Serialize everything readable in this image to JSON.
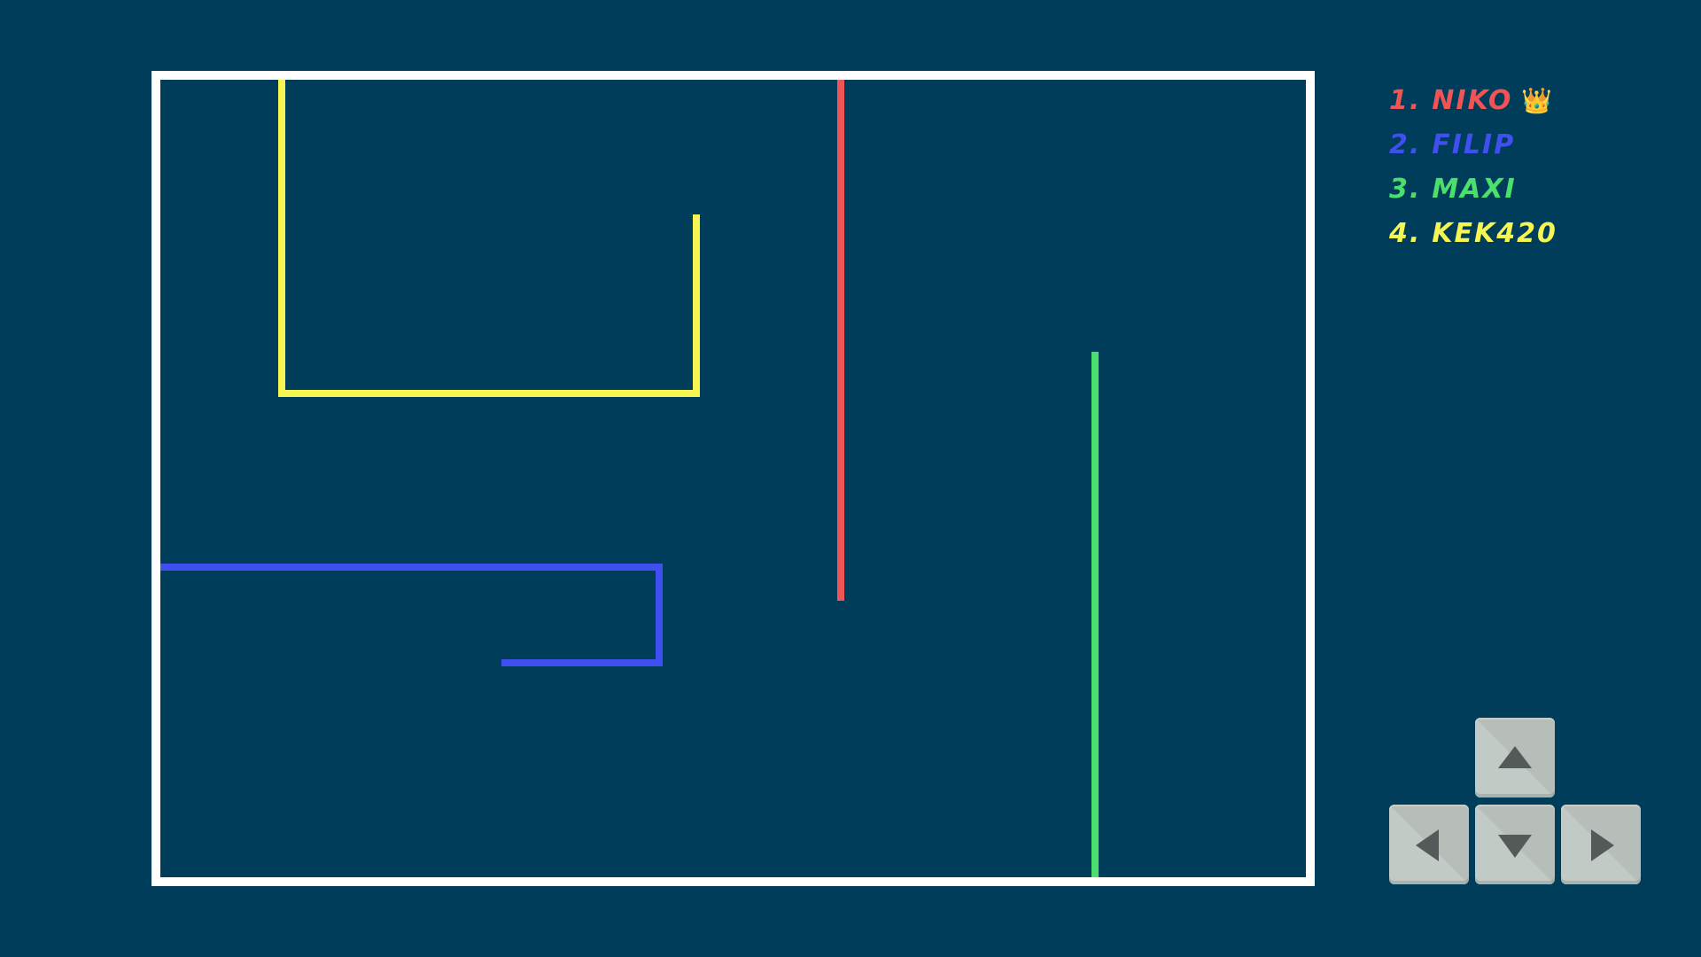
{
  "leaderboard": [
    {
      "rank": "1.",
      "name": "NIKO",
      "color": "#f05454",
      "crown": "👑"
    },
    {
      "rank": "2.",
      "name": "FILIP",
      "color": "#3f4ff0"
    },
    {
      "rank": "3.",
      "name": "MAXI",
      "color": "#4be06e"
    },
    {
      "rank": "4.",
      "name": "KEK420",
      "color": "#f7f552"
    }
  ],
  "trails": {
    "niko": {
      "color": "#f05454"
    },
    "filip": {
      "color": "#3f4ff0"
    },
    "maxi": {
      "color": "#4be06e"
    },
    "kek": {
      "color": "#f7f552"
    }
  },
  "controls": {
    "up": "arrow-up-icon",
    "left": "arrow-left-icon",
    "down": "arrow-down-icon",
    "right": "arrow-right-icon"
  },
  "colors": {
    "background": "#003d5b",
    "arena_border": "#ffffff",
    "key_face": "#c2cac6",
    "arrow": "#55595a"
  }
}
